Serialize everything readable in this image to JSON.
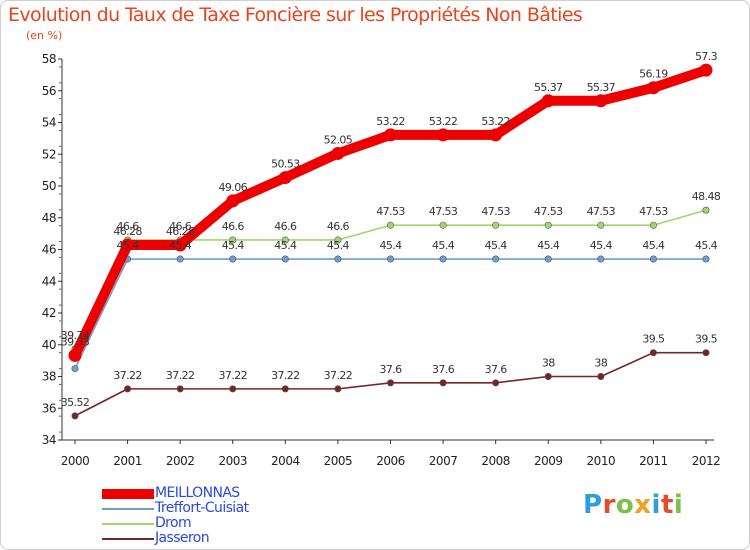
{
  "header": {
    "title": "Evolution du Taux de Taxe Foncière sur les Propriétés Non Bâties",
    "unit": "(en %)"
  },
  "logo": {
    "letters": [
      "P",
      "r",
      "o",
      "x",
      "i",
      "t",
      "i"
    ],
    "colors": [
      "#2f9ee0",
      "#e34d2a",
      "#7cc04b",
      "#f1a21c",
      "#2f9ee0",
      "#e34d2a",
      "#7cc04b"
    ]
  },
  "chart_data": {
    "type": "line",
    "title": "Evolution du Taux de Taxe Foncière sur les Propriétés Non Bâties",
    "ylabel": "(en %)",
    "xlabel": "",
    "x": [
      2000,
      2001,
      2002,
      2003,
      2004,
      2005,
      2006,
      2007,
      2008,
      2009,
      2010,
      2011,
      2012
    ],
    "ylim": [
      34,
      58
    ],
    "yticks": [
      34,
      36,
      38,
      40,
      42,
      44,
      46,
      48,
      50,
      52,
      54,
      56,
      58
    ],
    "grid": false,
    "legend_position": "bottom-left",
    "series": [
      {
        "name": "MEILLONNAS",
        "color": "#ee0000",
        "width": "thick",
        "values": [
          39.33,
          46.28,
          46.28,
          49.06,
          50.53,
          52.05,
          53.22,
          53.22,
          53.22,
          55.37,
          55.37,
          56.19,
          57.3
        ],
        "labels": [
          "39.33",
          "46.28",
          "46.28",
          "49.06",
          "50.53",
          "52.05",
          "53.22",
          "53.22",
          "53.22",
          "55.37",
          "55.37",
          "56.19",
          "57.3"
        ]
      },
      {
        "name": "Treffort-Cuisiat",
        "color": "#6f9fce",
        "width": "thin",
        "values": [
          38.5,
          45.4,
          45.4,
          45.4,
          45.4,
          45.4,
          45.4,
          45.4,
          45.4,
          45.4,
          45.4,
          45.4,
          45.4
        ],
        "labels": [
          "",
          "45.4",
          "45.4",
          "45.4",
          "45.4",
          "45.4",
          "45.4",
          "45.4",
          "45.4",
          "45.4",
          "45.4",
          "45.4",
          "45.4"
        ]
      },
      {
        "name": "Drom",
        "color": "#9ed86c",
        "width": "thin",
        "values": [
          39.74,
          46.6,
          46.6,
          46.6,
          46.6,
          46.6,
          47.53,
          47.53,
          47.53,
          47.53,
          47.53,
          47.53,
          48.48
        ],
        "labels": [
          "39.74",
          "46.6",
          "46.6",
          "46.6",
          "46.6",
          "46.6",
          "47.53",
          "47.53",
          "47.53",
          "47.53",
          "47.53",
          "47.53",
          "48.48"
        ]
      },
      {
        "name": "Jasseron",
        "color": "#742526",
        "width": "thin",
        "values": [
          35.52,
          37.22,
          37.22,
          37.22,
          37.22,
          37.22,
          37.6,
          37.6,
          37.6,
          38,
          38,
          39.5,
          39.5
        ],
        "labels": [
          "35.52",
          "37.22",
          "37.22",
          "37.22",
          "37.22",
          "37.22",
          "37.6",
          "37.6",
          "37.6",
          "38",
          "38",
          "39.5",
          "39.5"
        ]
      }
    ]
  }
}
